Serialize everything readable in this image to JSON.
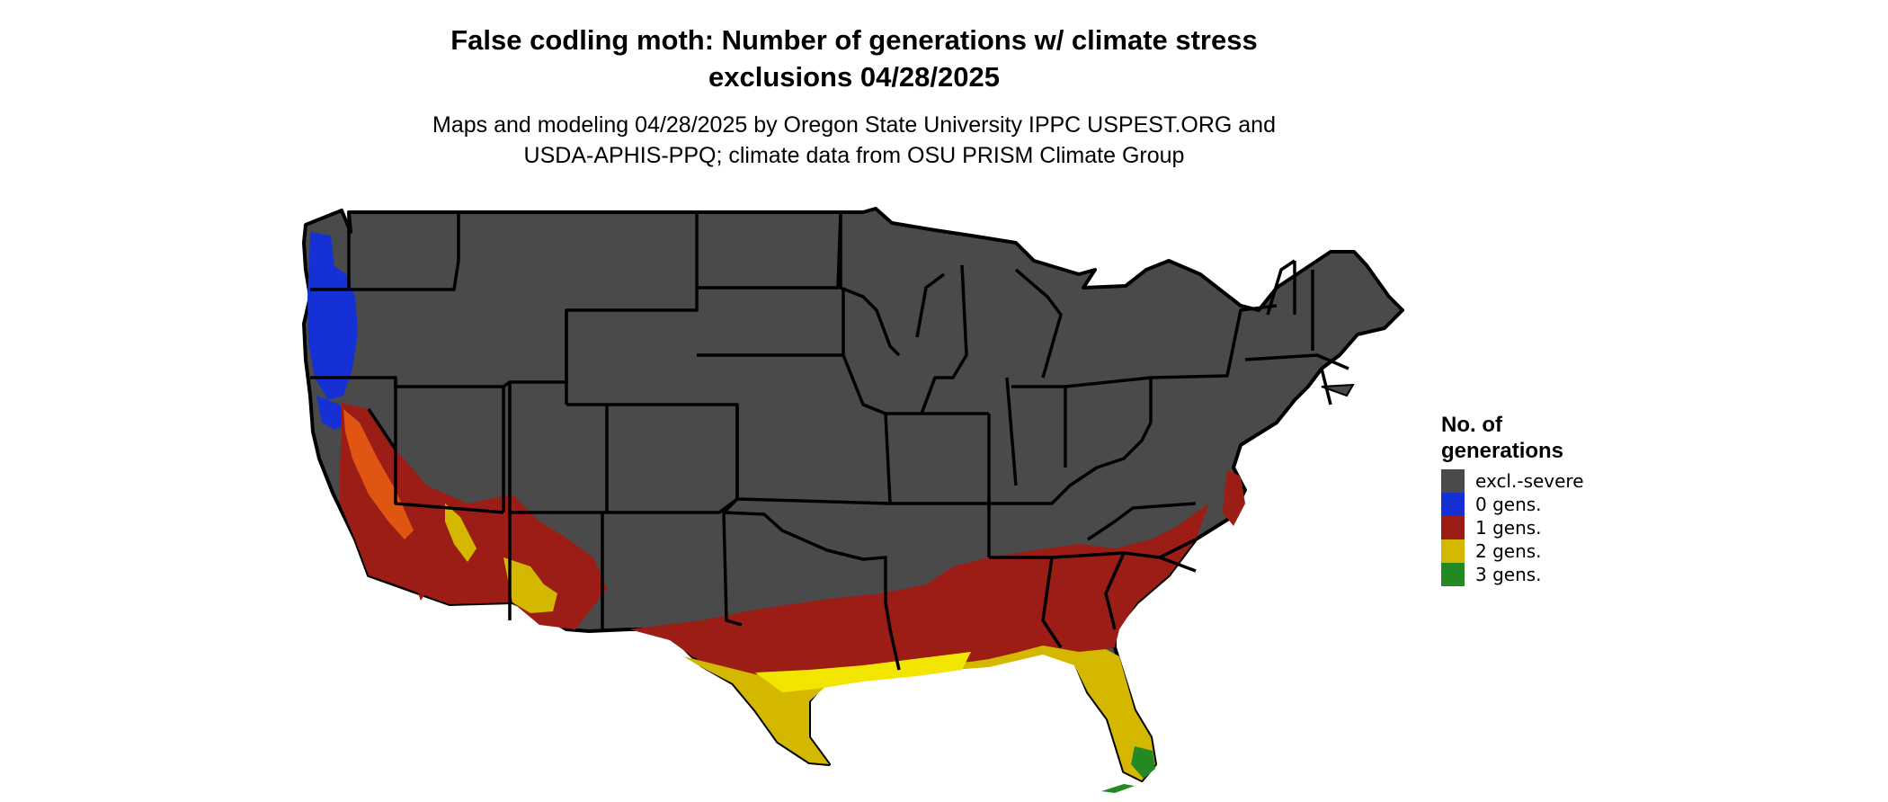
{
  "title_line1": "False codling moth: Number of generations w/ climate stress",
  "title_line2": "exclusions 04/28/2025",
  "subtitle_line1": "Maps and modeling 04/28/2025 by Oregon State University IPPC USPEST.ORG and",
  "subtitle_line2": "USDA-APHIS-PPQ; climate data from OSU PRISM Climate Group",
  "legend": {
    "title_line1": "No. of",
    "title_line2": "generations",
    "items": [
      {
        "label": "excl.-severe",
        "color": "#4a4a4a"
      },
      {
        "label": "0 gens.",
        "color": "#1531d6"
      },
      {
        "label": "1 gens.",
        "color": "#9b1d16"
      },
      {
        "label": "2 gens.",
        "color": "#d4b800"
      },
      {
        "label": "3 gens.",
        "color": "#238a23"
      }
    ]
  }
}
